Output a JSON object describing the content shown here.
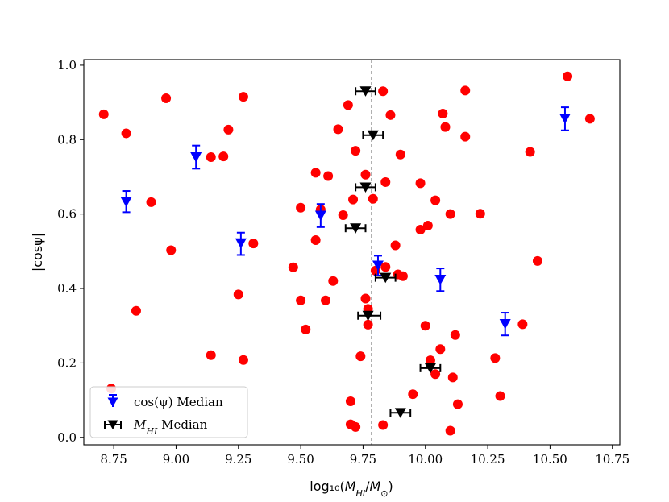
{
  "chart_data": {
    "type": "scatter",
    "xlabel": "log₁₀(M_HI/M_⊙)",
    "ylabel": "|cosψ|",
    "xlim": [
      8.63,
      10.78
    ],
    "ylim": [
      -0.02,
      1.015
    ],
    "x_ticks": [
      8.75,
      9.0,
      9.25,
      9.5,
      9.75,
      10.0,
      10.25,
      10.5,
      10.75
    ],
    "x_tick_labels": [
      "8.75",
      "9.00",
      "9.25",
      "9.50",
      "9.75",
      "10.00",
      "10.25",
      "10.50",
      "10.75"
    ],
    "y_ticks": [
      0.0,
      0.2,
      0.4,
      0.6,
      0.8,
      1.0
    ],
    "y_tick_labels": [
      "0.0",
      "0.2",
      "0.4",
      "0.6",
      "0.8",
      "1.0"
    ],
    "grid": false,
    "vline": {
      "x": 9.785,
      "style": "dashed",
      "color": "#000000"
    },
    "legend": {
      "placement": "lower-left",
      "entries": [
        {
          "label": "cos(ψ) Median",
          "series": "cos_median"
        },
        {
          "label": "M_HI Median",
          "series": "mhi_median"
        }
      ]
    },
    "series": [
      {
        "id": "galaxies",
        "marker": "circle",
        "color": "#ff0000",
        "points": [
          [
            8.71,
            0.868
          ],
          [
            8.8,
            0.817
          ],
          [
            8.74,
            0.131
          ],
          [
            8.84,
            0.34
          ],
          [
            8.9,
            0.632
          ],
          [
            8.96,
            0.911
          ],
          [
            8.98,
            0.503
          ],
          [
            9.14,
            0.753
          ],
          [
            9.19,
            0.755
          ],
          [
            9.14,
            0.221
          ],
          [
            9.21,
            0.827
          ],
          [
            9.25,
            0.384
          ],
          [
            9.27,
            0.915
          ],
          [
            9.27,
            0.208
          ],
          [
            9.31,
            0.521
          ],
          [
            9.47,
            0.457
          ],
          [
            9.5,
            0.617
          ],
          [
            9.5,
            0.368
          ],
          [
            9.52,
            0.29
          ],
          [
            9.56,
            0.711
          ],
          [
            9.56,
            0.53
          ],
          [
            9.58,
            0.612
          ],
          [
            9.6,
            0.368
          ],
          [
            9.61,
            0.702
          ],
          [
            9.63,
            0.42
          ],
          [
            9.65,
            0.828
          ],
          [
            9.67,
            0.597
          ],
          [
            9.69,
            0.893
          ],
          [
            9.71,
            0.639
          ],
          [
            9.72,
            0.77
          ],
          [
            9.7,
            0.097
          ],
          [
            9.7,
            0.035
          ],
          [
            9.72,
            0.028
          ],
          [
            9.74,
            0.218
          ],
          [
            9.76,
            0.706
          ],
          [
            9.76,
            0.373
          ],
          [
            9.77,
            0.345
          ],
          [
            9.77,
            0.303
          ],
          [
            9.79,
            0.641
          ],
          [
            9.8,
            0.448
          ],
          [
            9.83,
            0.93
          ],
          [
            9.84,
            0.686
          ],
          [
            9.84,
            0.458
          ],
          [
            9.83,
            0.033
          ],
          [
            9.86,
            0.866
          ],
          [
            9.88,
            0.516
          ],
          [
            9.89,
            0.438
          ],
          [
            9.9,
            0.76
          ],
          [
            9.91,
            0.433
          ],
          [
            9.95,
            0.116
          ],
          [
            9.98,
            0.558
          ],
          [
            9.98,
            0.683
          ],
          [
            10.0,
            0.3
          ],
          [
            10.01,
            0.569
          ],
          [
            10.02,
            0.207
          ],
          [
            10.04,
            0.637
          ],
          [
            10.04,
            0.17
          ],
          [
            10.06,
            0.237
          ],
          [
            10.07,
            0.87
          ],
          [
            10.08,
            0.834
          ],
          [
            10.1,
            0.6
          ],
          [
            10.1,
            0.018
          ],
          [
            10.11,
            0.161
          ],
          [
            10.12,
            0.275
          ],
          [
            10.13,
            0.089
          ],
          [
            10.16,
            0.808
          ],
          [
            10.16,
            0.932
          ],
          [
            10.22,
            0.601
          ],
          [
            10.28,
            0.213
          ],
          [
            10.3,
            0.111
          ],
          [
            10.39,
            0.304
          ],
          [
            10.42,
            0.767
          ],
          [
            10.45,
            0.474
          ],
          [
            10.57,
            0.97
          ],
          [
            10.66,
            0.856
          ]
        ]
      },
      {
        "id": "cos_median",
        "name": "cos(ψ) Median",
        "marker": "triangle-down",
        "color": "#0000ff",
        "errorbar": "vertical",
        "points": [
          {
            "x": 8.8,
            "y": 0.633,
            "lo": 0.605,
            "hi": 0.662
          },
          {
            "x": 9.08,
            "y": 0.753,
            "lo": 0.722,
            "hi": 0.784
          },
          {
            "x": 9.26,
            "y": 0.522,
            "lo": 0.49,
            "hi": 0.55
          },
          {
            "x": 9.58,
            "y": 0.596,
            "lo": 0.565,
            "hi": 0.627
          },
          {
            "x": 9.81,
            "y": 0.462,
            "lo": 0.435,
            "hi": 0.488
          },
          {
            "x": 10.06,
            "y": 0.424,
            "lo": 0.393,
            "hi": 0.454
          },
          {
            "x": 10.32,
            "y": 0.305,
            "lo": 0.274,
            "hi": 0.335
          },
          {
            "x": 10.56,
            "y": 0.857,
            "lo": 0.825,
            "hi": 0.887
          }
        ]
      },
      {
        "id": "mhi_median",
        "name": "M_HI Median",
        "marker": "triangle-down",
        "color": "#000000",
        "errorbar": "horizontal",
        "points": [
          {
            "x": 9.76,
            "y": 0.93,
            "lo": 9.72,
            "hi": 9.8
          },
          {
            "x": 9.79,
            "y": 0.812,
            "lo": 9.75,
            "hi": 9.83
          },
          {
            "x": 9.76,
            "y": 0.672,
            "lo": 9.72,
            "hi": 9.8
          },
          {
            "x": 9.72,
            "y": 0.562,
            "lo": 9.68,
            "hi": 9.76
          },
          {
            "x": 9.84,
            "y": 0.429,
            "lo": 9.8,
            "hi": 9.88
          },
          {
            "x": 9.77,
            "y": 0.327,
            "lo": 9.73,
            "hi": 9.82
          },
          {
            "x": 10.02,
            "y": 0.186,
            "lo": 9.98,
            "hi": 10.06
          },
          {
            "x": 9.9,
            "y": 0.066,
            "lo": 9.86,
            "hi": 9.94
          }
        ]
      }
    ]
  }
}
